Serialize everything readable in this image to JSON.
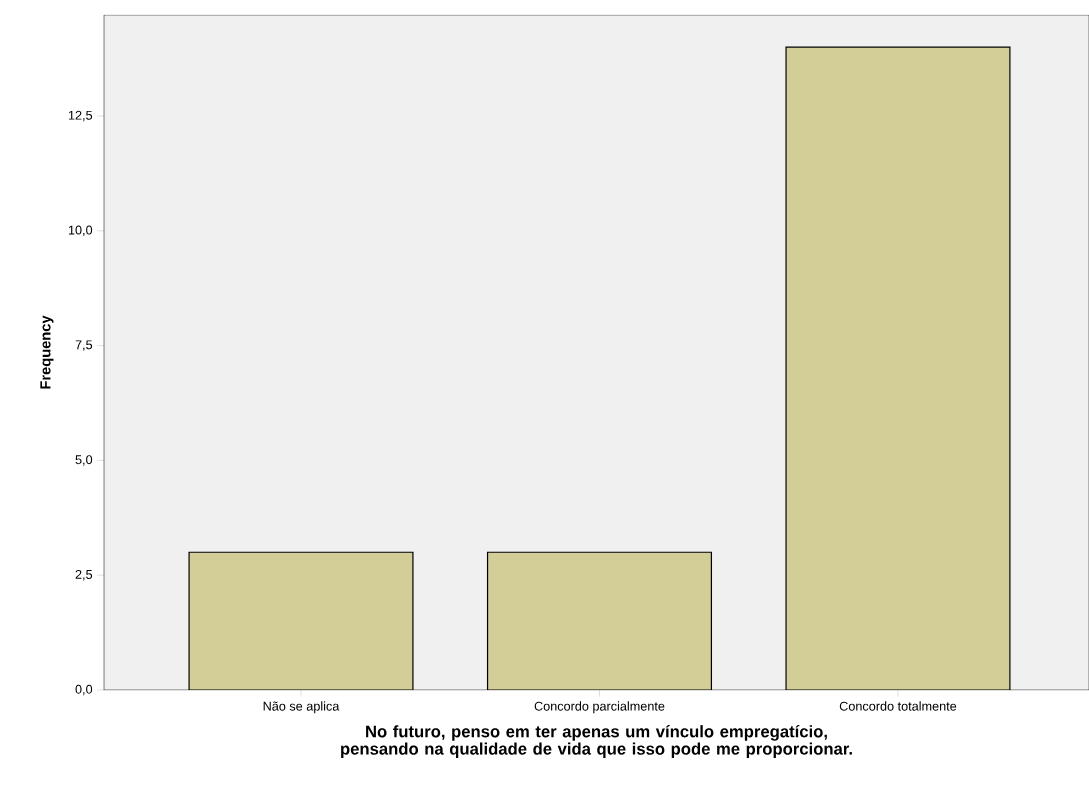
{
  "chart_data": {
    "type": "bar",
    "xlabel": "No futuro, penso em ter apenas um vínculo empregatício, pensando na qualidade de vida que isso pode me proporcionar.",
    "ylabel": "Frequency",
    "categories": [
      "Não se aplica",
      "Concordo parcialmente",
      "Concordo totalmente"
    ],
    "values": [
      3,
      3,
      14
    ],
    "color": "#d3ce97",
    "ylim": [
      0,
      14.7
    ],
    "yticks": [
      {
        "value": 0,
        "label": "0,0"
      },
      {
        "value": 2.5,
        "label": "2,5"
      },
      {
        "value": 5,
        "label": "5,0"
      },
      {
        "value": 7.5,
        "label": "7,5"
      },
      {
        "value": 10,
        "label": "10,0"
      },
      {
        "value": 12.5,
        "label": "12,5"
      }
    ]
  }
}
